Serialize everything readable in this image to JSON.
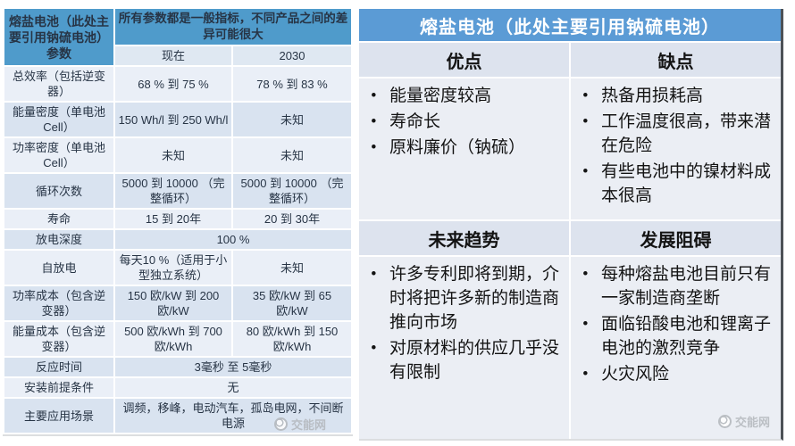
{
  "colors": {
    "left-header-blue": "#4f9bcb",
    "right-header-blue": "#5b9bd5",
    "band-light": "#eaeff7",
    "band-dark": "#d9e3f0",
    "colhead-bg": "#dfe8f2",
    "subhead-bg": "#dde3ee",
    "panel-body": "#ebeef4",
    "panel-edge": "#4d5257",
    "watermark-gray": "#b3b7bc"
  },
  "left_table": {
    "title": "熔盐电池（此处主要引用钠硫电池）参数",
    "note": "所有参数都是一般指标，不同产品之间的差异可能很大",
    "col_now": "现在",
    "col_2030": "2030",
    "rows": [
      {
        "label": "总效率（包括逆变器）",
        "now": "68 % 到 75 %",
        "y2030": "78 % 到 83 %"
      },
      {
        "label": "能量密度（单电池Cell）",
        "now": "150 Wh/l 到 250 Wh/l",
        "y2030": "未知"
      },
      {
        "label": "功率密度（单电池Cell）",
        "now": "未知",
        "y2030": "未知"
      },
      {
        "label": "循环次数",
        "now": "5000 到 10000 （完整循环）",
        "y2030": "5000 到 10000 （完整循环）"
      },
      {
        "label": "寿命",
        "now": "15 到 20年",
        "y2030": "20 到 30年"
      },
      {
        "label": "放电深度",
        "span": "100 %"
      },
      {
        "label": "自放电",
        "now": "每天10 %（适用于小型独立系统）",
        "y2030": "未知"
      },
      {
        "label": "功率成本（包含逆变器）",
        "now": "150 欧/kW 到 200 欧/kW",
        "y2030": "35 欧/kW 到 65 欧/kW"
      },
      {
        "label": "能量成本（包含逆变器）",
        "now": "500 欧/kWh 到 700 欧/kWh",
        "y2030": "80 欧/kWh 到 150 欧/kWh"
      },
      {
        "label": "反应时间",
        "span": "3毫秒 至 5毫秒"
      },
      {
        "label": "安装前提条件",
        "span": "无"
      },
      {
        "label": "主要应用场景",
        "span": "调频，移峰，电动汽车，孤岛电网，不间断电源"
      }
    ],
    "watermark": "交能网"
  },
  "right_panel": {
    "title": "熔盐电池（此处主要引用钠硫电池）",
    "sections": [
      {
        "left": {
          "heading": "优点",
          "bullets": [
            "能量密度较高",
            "寿命长",
            "原料廉价（钠硫）"
          ]
        },
        "right": {
          "heading": "缺点",
          "bullets": [
            "热备用损耗高",
            "工作温度很高，带来潜在危险",
            "有些电池中的镍材料成本很高"
          ]
        }
      },
      {
        "left": {
          "heading": "未来趋势",
          "bullets": [
            "许多专利即将到期，介时将把许多新的制造商推向市场",
            "对原材料的供应几乎没有限制"
          ]
        },
        "right": {
          "heading": "发展阻碍",
          "bullets": [
            "每种熔盐电池目前只有一家制造商垄断",
            "面临铅酸电池和锂离子电池的激烈竞争",
            "火灾风险"
          ]
        }
      }
    ],
    "watermark": "交能网"
  }
}
